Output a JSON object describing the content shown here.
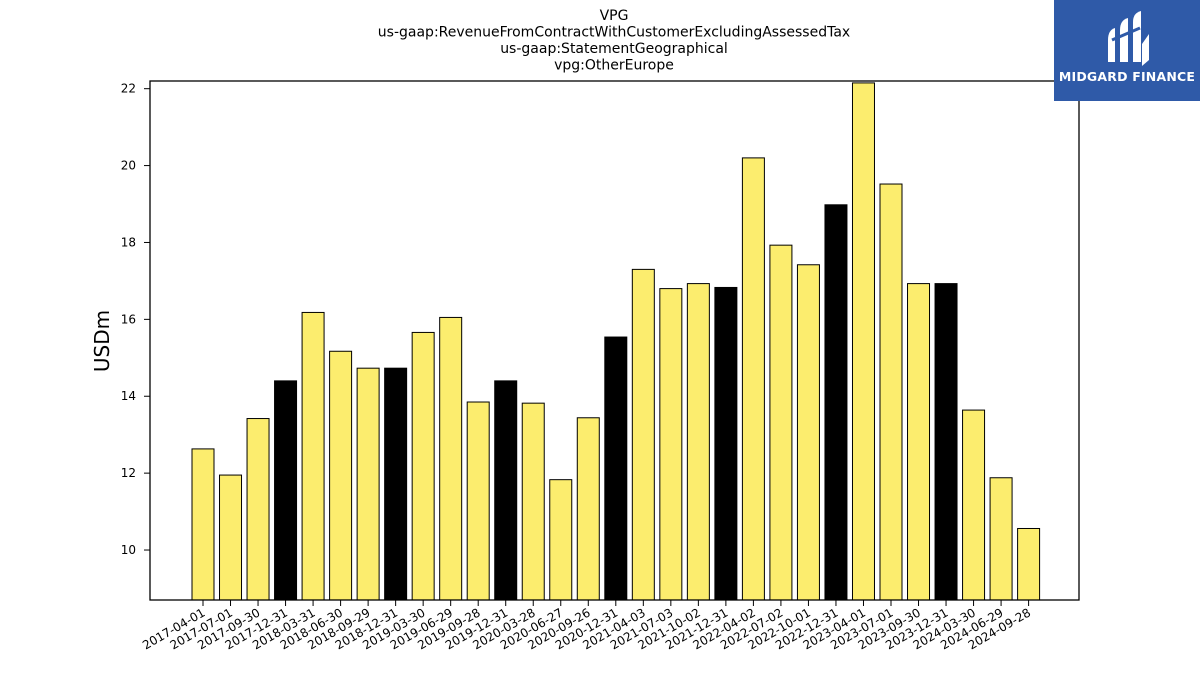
{
  "chart_data": {
    "type": "bar",
    "title_lines": [
      "VPG",
      "us-gaap:RevenueFromContractWithCustomerExcludingAssessedTax",
      "us-gaap:StatementGeographical",
      "vpg:OtherEurope"
    ],
    "xlabel": "",
    "ylabel": "USDm",
    "ylim": [
      8.7,
      22.2
    ],
    "yticks": [
      10,
      12,
      14,
      16,
      18,
      20,
      22
    ],
    "grid": false,
    "categories": [
      "2017-04-01",
      "2017-07-01",
      "2017-09-30",
      "2017-12-31",
      "2018-03-31",
      "2018-06-30",
      "2018-09-29",
      "2018-12-31",
      "2019-03-30",
      "2019-06-29",
      "2019-09-28",
      "2019-12-31",
      "2020-03-28",
      "2020-06-27",
      "2020-09-26",
      "2020-12-31",
      "2021-04-03",
      "2021-07-03",
      "2021-10-02",
      "2021-12-31",
      "2022-04-02",
      "2022-07-02",
      "2022-10-01",
      "2022-12-31",
      "2023-04-01",
      "2023-07-01",
      "2023-09-30",
      "2023-12-31",
      "2024-03-30",
      "2024-06-29",
      "2024-09-28"
    ],
    "values": [
      12.63,
      11.95,
      13.42,
      14.4,
      16.18,
      15.17,
      14.73,
      14.73,
      15.66,
      16.05,
      13.85,
      14.4,
      13.82,
      11.83,
      13.44,
      15.54,
      17.3,
      16.8,
      16.93,
      16.83,
      20.2,
      17.93,
      17.42,
      18.98,
      22.15,
      19.52,
      16.93,
      16.93,
      13.64,
      11.88,
      10.56
    ],
    "bar_kind": [
      "quarter",
      "quarter",
      "quarter",
      "year",
      "quarter",
      "quarter",
      "quarter",
      "year",
      "quarter",
      "quarter",
      "quarter",
      "year",
      "quarter",
      "quarter",
      "quarter",
      "year",
      "quarter",
      "quarter",
      "quarter",
      "year",
      "quarter",
      "quarter",
      "quarter",
      "year",
      "quarter",
      "quarter",
      "quarter",
      "year",
      "quarter",
      "quarter",
      "quarter"
    ],
    "colors": {
      "quarter": "#fced6e",
      "year": "#000000",
      "edge": "#000000"
    }
  },
  "logo": {
    "text": "MIDGARD FINANCE",
    "background": "#2f5aa8",
    "foreground": "#ffffff",
    "icon": "stylized-m-icon"
  }
}
